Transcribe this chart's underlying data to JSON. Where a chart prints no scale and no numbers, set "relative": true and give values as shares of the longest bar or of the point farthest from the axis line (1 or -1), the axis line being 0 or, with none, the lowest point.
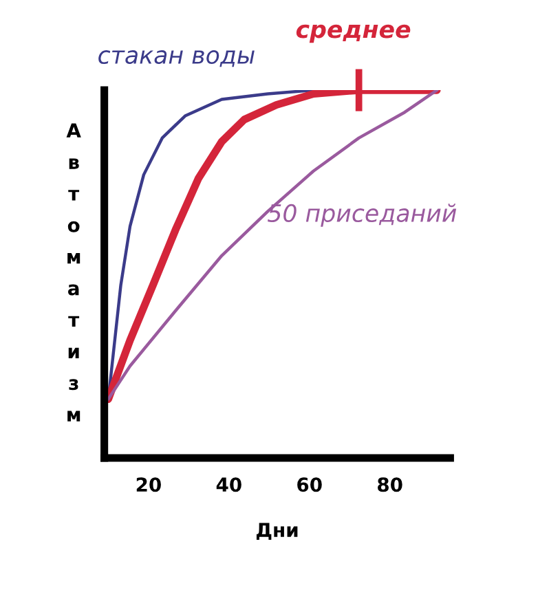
{
  "chart_data": {
    "type": "line",
    "relative": true,
    "xlabel": "Дни",
    "ylabel": "Автоматизм",
    "xlim": [
      9,
      95
    ],
    "xticks": [
      20,
      40,
      60,
      80
    ],
    "grid": false,
    "legend": false,
    "marker": "none",
    "line_style": "solid",
    "series": [
      {
        "name": "стакан воды",
        "color": "#3b3b8a",
        "x": [
          10,
          13.1,
          15.4,
          18.8,
          23.4,
          29.1,
          38.2,
          49.6,
          61,
          91.7
        ],
        "values": [
          0.16,
          0.47,
          0.63,
          0.77,
          0.87,
          0.93,
          0.975,
          0.99,
          1,
          1
        ]
      },
      {
        "name": "среднее",
        "color": "#d4253a",
        "x": [
          10,
          15.4,
          21.1,
          26.7,
          32.4,
          38.2,
          43.8,
          51.8,
          61,
          72.3,
          91.7
        ],
        "values": [
          0.16,
          0.32,
          0.47,
          0.62,
          0.76,
          0.86,
          0.92,
          0.96,
          0.99,
          1,
          1
        ]
      },
      {
        "name": "50 приседаний",
        "color": "#9a5a9e",
        "x": [
          10,
          15.4,
          26.7,
          38.2,
          49.6,
          61,
          72.3,
          83.7,
          91.7
        ],
        "values": [
          0.16,
          0.25,
          0.4,
          0.55,
          0.67,
          0.78,
          0.87,
          0.94,
          1
        ]
      }
    ]
  }
}
